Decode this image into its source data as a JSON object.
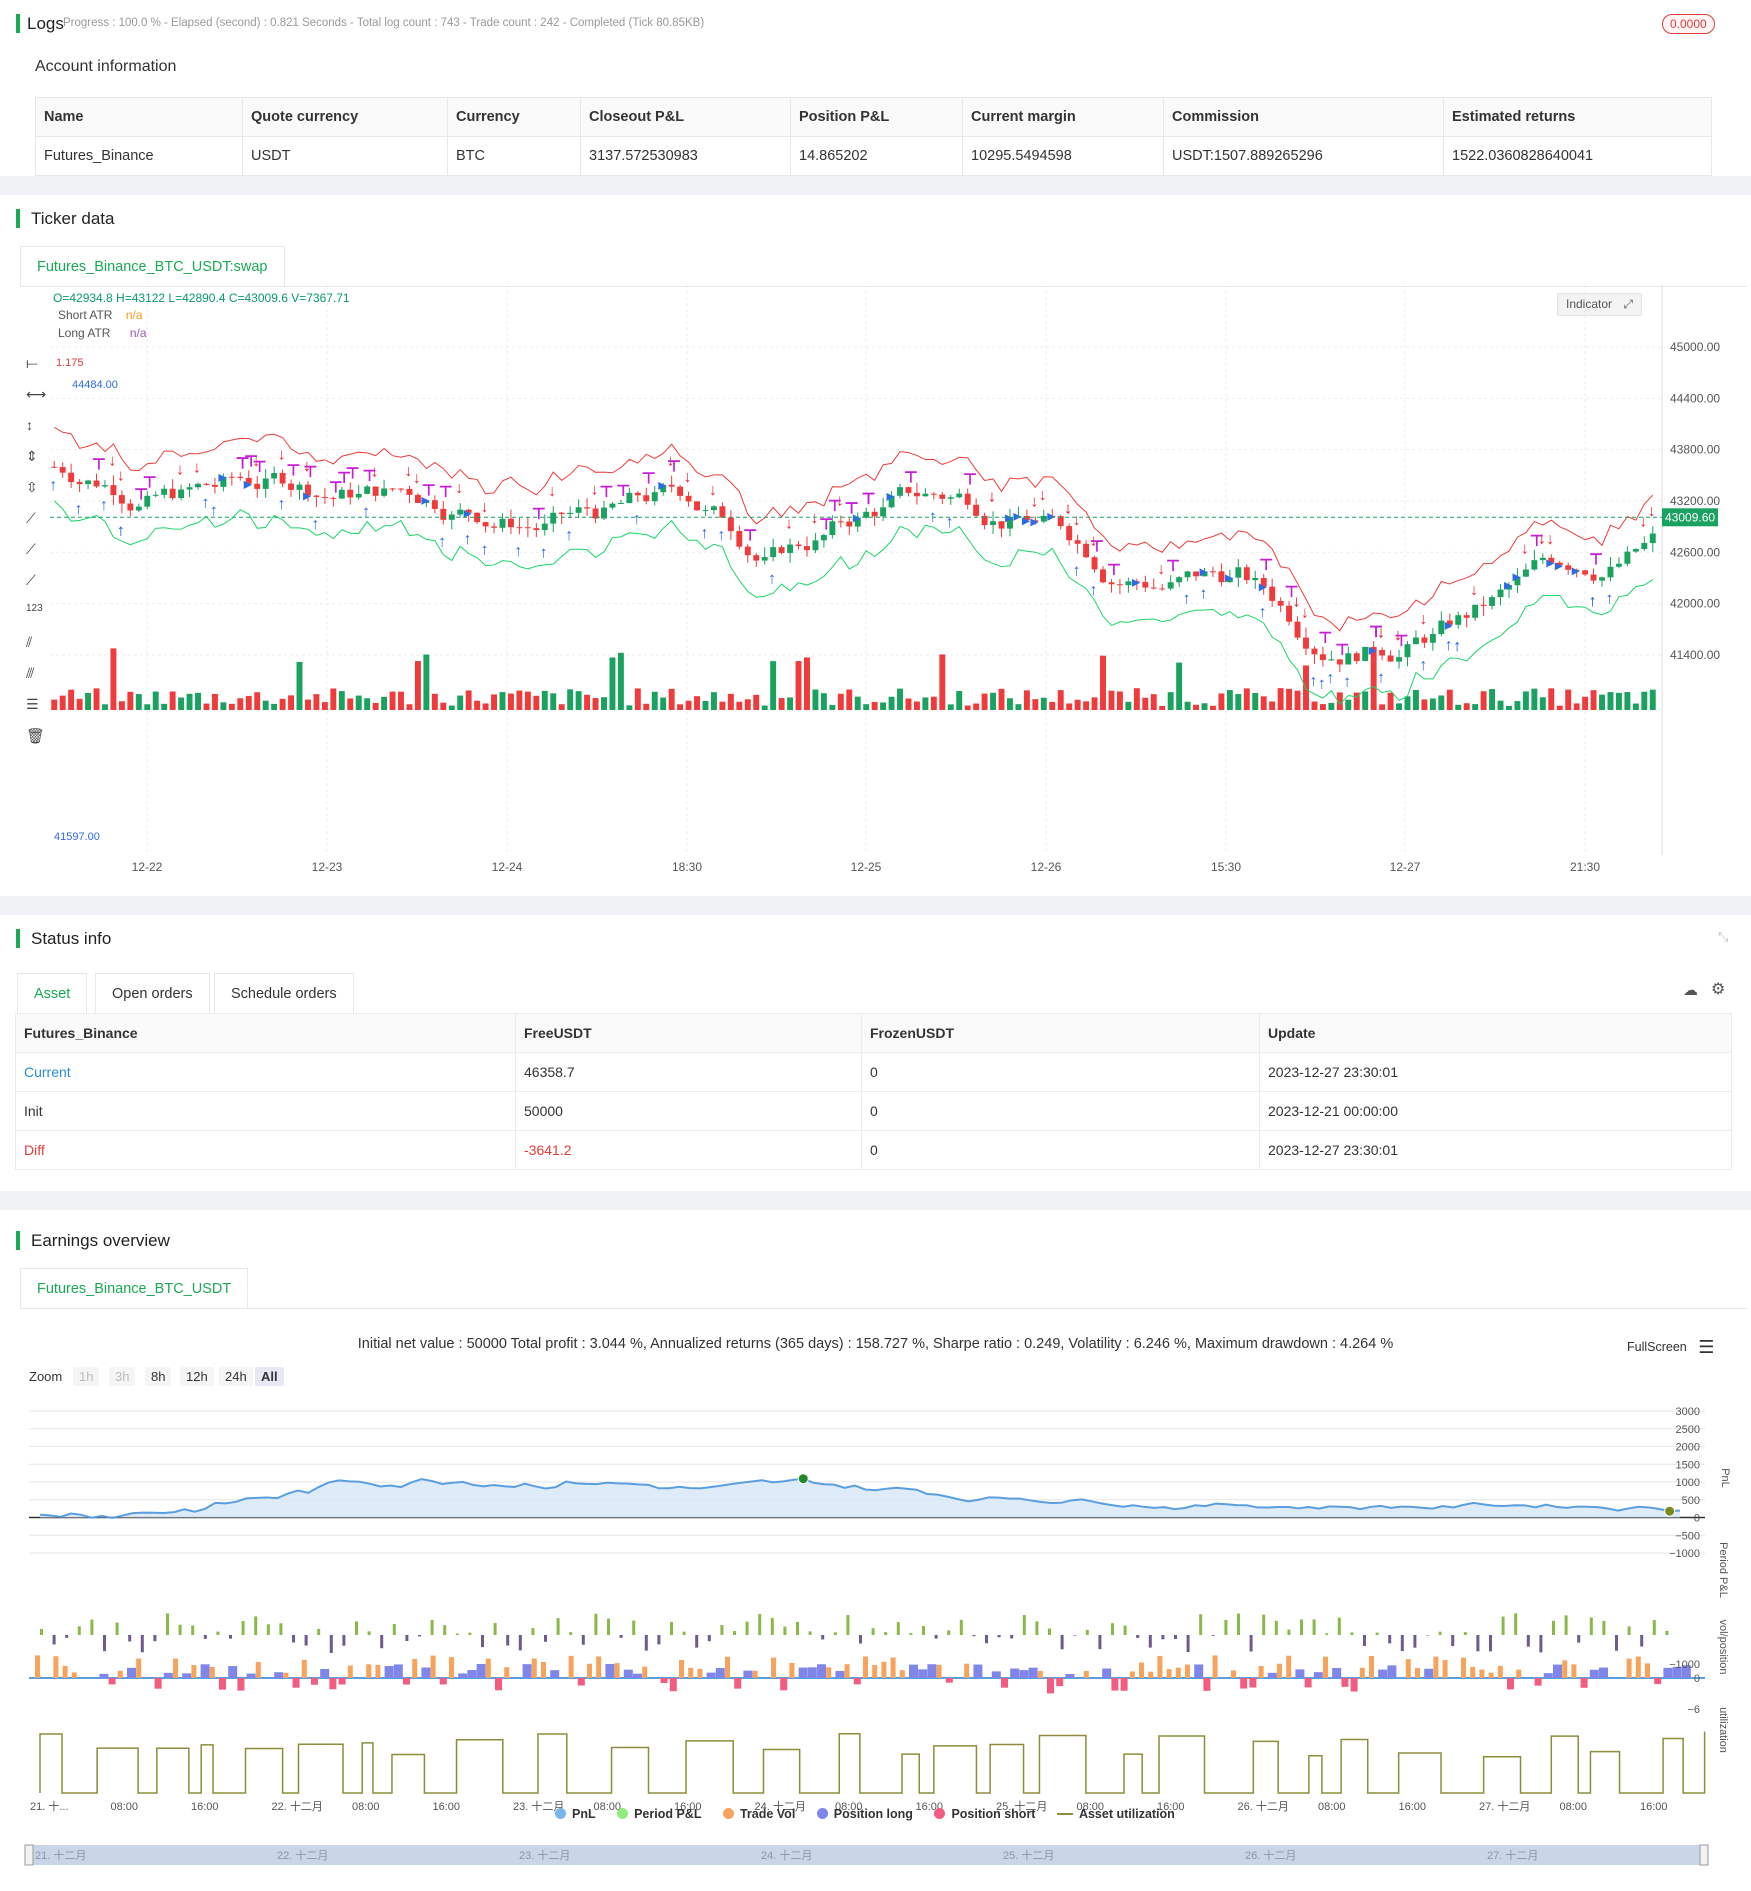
{
  "logs": {
    "title": "Logs",
    "summary": "Progress : 100.0 % - Elapsed (second) : 0.821  Seconds - Total log count : 743 - Trade count : 242 - Completed (Tick 80.85KB)",
    "badge": "0.0000",
    "account_title": "Account information",
    "columns": [
      "Name",
      "Quote currency",
      "Currency",
      "Closeout P&L",
      "Position P&L",
      "Current margin",
      "Commission",
      "Estimated returns"
    ],
    "row": [
      "Futures_Binance",
      "USDT",
      "BTC",
      "3137.572530983",
      "14.865202",
      "10295.5494598",
      "USDT:1507.889265296",
      "1522.0360828640041"
    ]
  },
  "ticker": {
    "title": "Ticker data",
    "tab": "Futures_Binance_BTC_USDT:swap",
    "ohlc": "O=42934.8 H=43122 L=42890.4 C=43009.6 V=7367.71",
    "legend": [
      {
        "name": "Short ATR",
        "value": "n/a",
        "color": "#f59a23"
      },
      {
        "name": "Long ATR",
        "value": "n/a",
        "color": "#9b59b6"
      }
    ],
    "indicator_btn": "Indicator",
    "price_labels": [
      "45000.00",
      "44400.00",
      "43800.00",
      "43200.00",
      "42600.00",
      "42000.00",
      "41400.00"
    ],
    "current_price": "43009.60",
    "x_labels": [
      "12-22",
      "12-23",
      "12-24",
      "18:30",
      "12-25",
      "12-26",
      "15:30",
      "12-27",
      "21:30"
    ],
    "left_markers": [
      "1.175",
      "44484.00",
      "41597.00"
    ]
  },
  "status": {
    "title": "Status info",
    "tabs": [
      "Asset",
      "Open orders",
      "Schedule orders"
    ],
    "columns": [
      "Futures_Binance",
      "FreeUSDT",
      "FrozenUSDT",
      "Update"
    ],
    "rows": [
      {
        "name": "Current",
        "free": "46358.7",
        "frozen": "0",
        "update": "2023-12-27 23:30:01",
        "name_color": "#2a8bd8",
        "free_color": "#333"
      },
      {
        "name": "Init",
        "free": "50000",
        "frozen": "0",
        "update": "2023-12-21 00:00:00",
        "name_color": "#333",
        "free_color": "#333"
      },
      {
        "name": "Diff",
        "free": "-3641.2",
        "frozen": "0",
        "update": "2023-12-27 23:30:01",
        "name_color": "#e03c3c",
        "free_color": "#e03c3c"
      }
    ]
  },
  "earnings": {
    "title": "Earnings overview",
    "tab": "Futures_Binance_BTC_USDT",
    "summary": "Initial net value : 50000 Total profit : 3.044 %, Annualized returns (365 days) : 158.727 %, Sharpe ratio : 0.249, Volatility : 6.246 %, Maximum drawdown : 4.264 %",
    "fullscreen": "FullScreen",
    "zoom_label": "Zoom",
    "zoom_buttons": [
      "1h",
      "3h",
      "8h",
      "12h",
      "24h",
      "All"
    ],
    "pnl_ticks": [
      "3000",
      "2500",
      "2000",
      "1500",
      "1000",
      "500",
      "0",
      "−500",
      "−1000"
    ],
    "period_ticks": [
      "−1000"
    ],
    "vol_ticks": [
      "0",
      "−6"
    ],
    "axis_titles": [
      "PnL",
      "Period P&L",
      "vol/position",
      "utilization"
    ],
    "x_labels": [
      "21. 十...",
      "08:00",
      "16:00",
      "22. 十二月",
      "08:00",
      "16:00",
      "23. 十二月",
      "08:00",
      "16:00",
      "24. 十二月",
      "08:00",
      "16:00",
      "25. 十二月",
      "08:00",
      "16:00",
      "26. 十二月",
      "08:00",
      "16:00",
      "27. 十二月",
      "08:00",
      "16:00"
    ],
    "legend": [
      {
        "name": "PnL",
        "color": "#7cb5ec"
      },
      {
        "name": "Period P&L",
        "color": "#90ed7d"
      },
      {
        "name": "Trade Vol",
        "color": "#f7a35c"
      },
      {
        "name": "Position long",
        "color": "#8085e9"
      },
      {
        "name": "Position short",
        "color": "#f15c80"
      },
      {
        "name": "Asset utilization",
        "color": "#8d8d3a"
      }
    ],
    "navigator_labels": [
      "21. 十二月",
      "22. 十二月",
      "23. 十二月",
      "24. 十二月",
      "25. 十二月",
      "26. 十二月",
      "27. 十二月"
    ],
    "markers": [
      "max",
      "min"
    ]
  }
}
